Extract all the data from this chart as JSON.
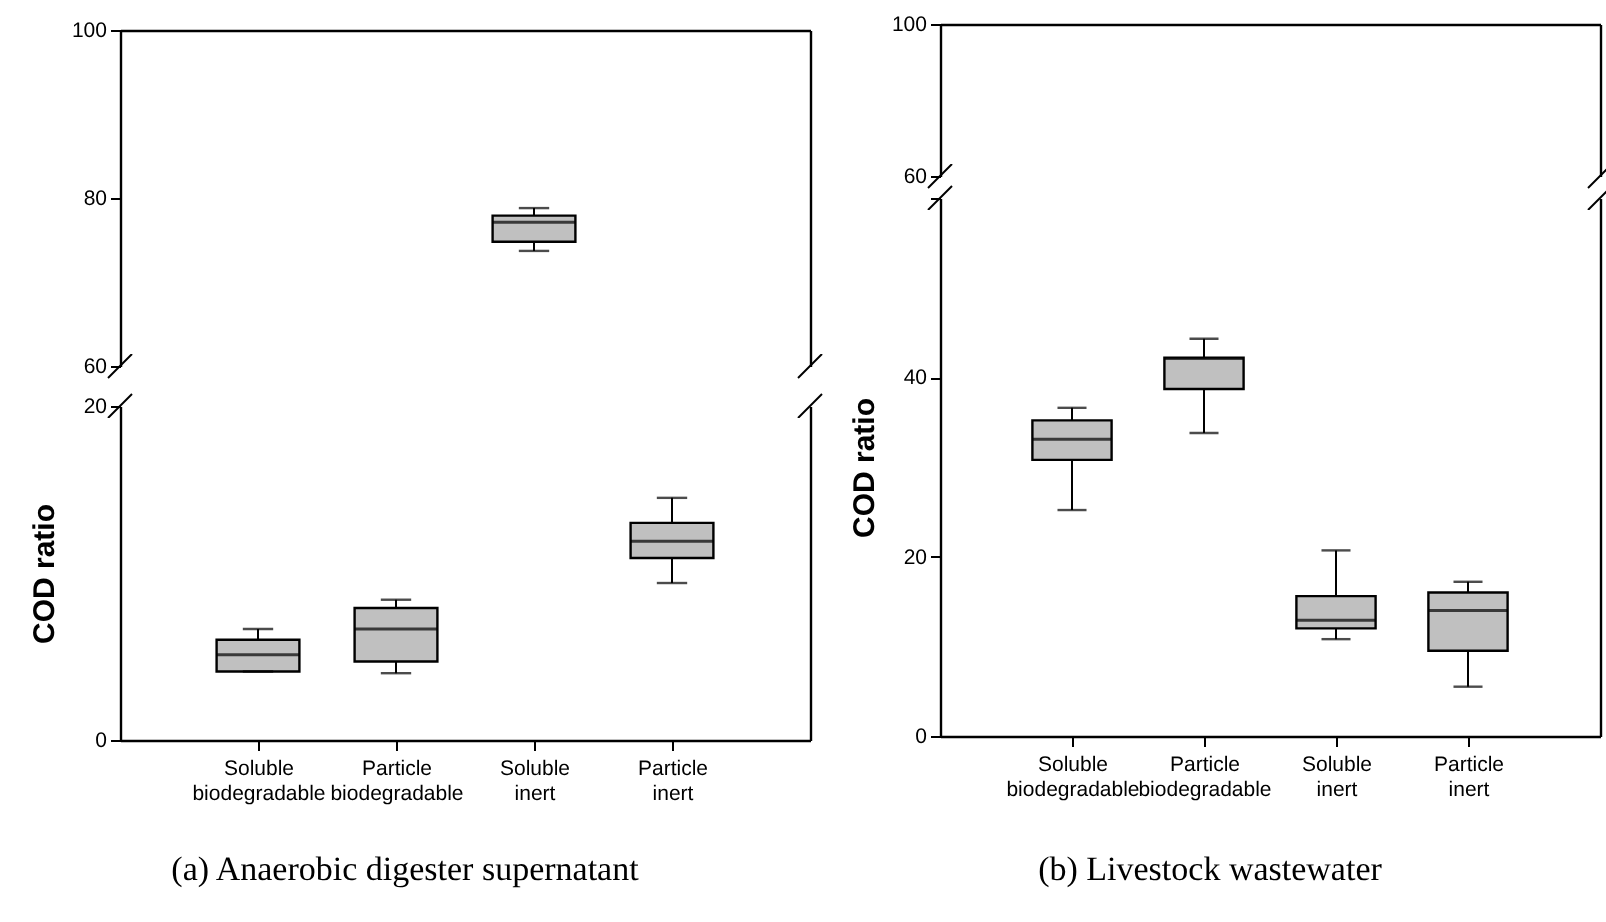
{
  "chart_data": [
    {
      "type": "box",
      "categories": [
        null,
        null,
        null,
        null
      ],
      "ylim": [
        60,
        100
      ],
      "yticks": [
        60,
        80,
        100
      ],
      "tick_labels": "y",
      "boxes": [
        null,
        null,
        {
          "low": 73.7,
          "q1": 74.8,
          "median": 77.1,
          "q3": 77.9,
          "high": 78.8
        },
        null
      ]
    },
    {
      "type": "box",
      "categories": [
        "Soluble biodegradable",
        "Particle biodegradable",
        "Soluble inert",
        "Particle inert"
      ],
      "ylim": [
        0,
        20
      ],
      "yticks": [
        0,
        20
      ],
      "ylabel": "COD ratio",
      "boxes": [
        {
          "low": 4.1,
          "q1": 4.1,
          "median": 5.1,
          "q3": 6.0,
          "high": 6.65
        },
        {
          "low": 4.0,
          "q1": 4.7,
          "median": 6.65,
          "q3": 7.9,
          "high": 8.4
        },
        null,
        {
          "low": 9.4,
          "q1": 10.9,
          "median": 11.9,
          "q3": 13.0,
          "high": 14.5
        }
      ],
      "annotations": [
        "(a) Anaerobic digester supernatant"
      ]
    },
    {
      "type": "box",
      "categories": [
        null,
        null,
        null,
        null
      ],
      "ylim": [
        60,
        100
      ],
      "yticks": [
        60,
        100
      ],
      "tick_labels": "y",
      "boxes": [
        null,
        null,
        null,
        null
      ]
    },
    {
      "type": "box",
      "categories": [
        "Soluble biodegradable",
        "Particle biodegradable",
        "Soluble inert",
        "Particle inert"
      ],
      "ylim": [
        0,
        60
      ],
      "yticks": [
        0,
        20,
        40,
        {
          "value": 60,
          "label": null
        }
      ],
      "ylabel": "COD ratio",
      "boxes": [
        {
          "low": 25.2,
          "q1": 30.8,
          "median": 33.1,
          "q3": 35.2,
          "high": 36.6
        },
        {
          "low": 33.8,
          "q1": 38.7,
          "median": 42.1,
          "q3": 42.2,
          "high": 44.3
        },
        {
          "low": 10.8,
          "q1": 12.0,
          "median": 12.9,
          "q3": 15.6,
          "high": 20.7
        },
        {
          "low": 5.5,
          "q1": 9.5,
          "median": 14.0,
          "q3": 16.0,
          "high": 17.2
        }
      ],
      "annotations": [
        "(b) Livestock wastewater"
      ]
    }
  ]
}
